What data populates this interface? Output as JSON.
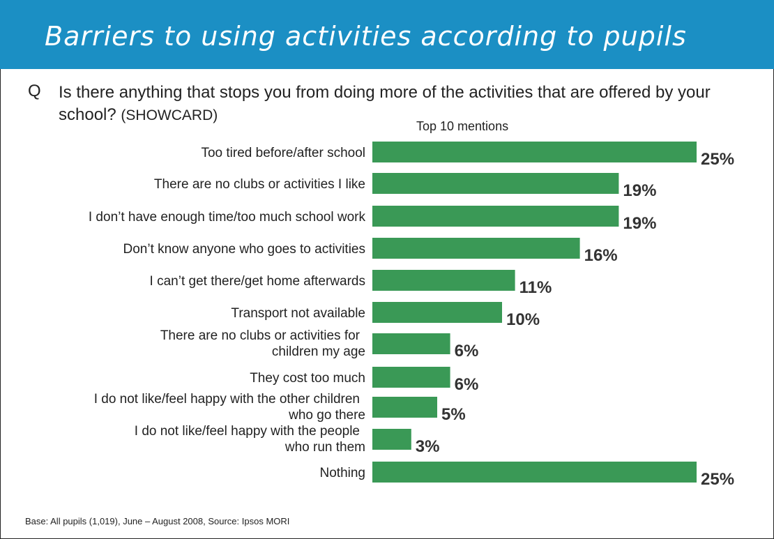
{
  "slide": {
    "title": "Barriers to using activities according to pupils",
    "question_marker": "Q",
    "question": "Is there anything that stops you from doing more of the activities that are offered by your school?",
    "question_tag": "(SHOWCARD)",
    "footer": "Base: All pupils (1,019), June – August 2008, Source: Ipsos MORI"
  },
  "colors": {
    "header": "#1b8fc4",
    "bar": "#3a9956"
  },
  "chart_data": {
    "type": "bar",
    "orientation": "horizontal",
    "subtitle": "Top 10 mentions",
    "categories": [
      "Too tired before/after school",
      "There are no clubs or activities I like",
      "I don’t have enough time/too much school work",
      "Don’t know anyone who goes to activities",
      "I can’t get there/get home afterwards",
      "Transport not available",
      "There are no clubs or activities for children my age",
      "They cost too much",
      "I do not like/feel happy with the other children who go there",
      "I do not like/feel happy with the people who run them",
      "Nothing"
    ],
    "values": [
      25,
      19,
      19,
      16,
      11,
      10,
      6,
      6,
      5,
      3,
      25
    ],
    "value_labels": [
      "25%",
      "19%",
      "19%",
      "16%",
      "11%",
      "10%",
      "6%",
      "6%",
      "5%",
      "3%",
      "25%"
    ],
    "unit": "%",
    "xlim": [
      0,
      25
    ]
  }
}
